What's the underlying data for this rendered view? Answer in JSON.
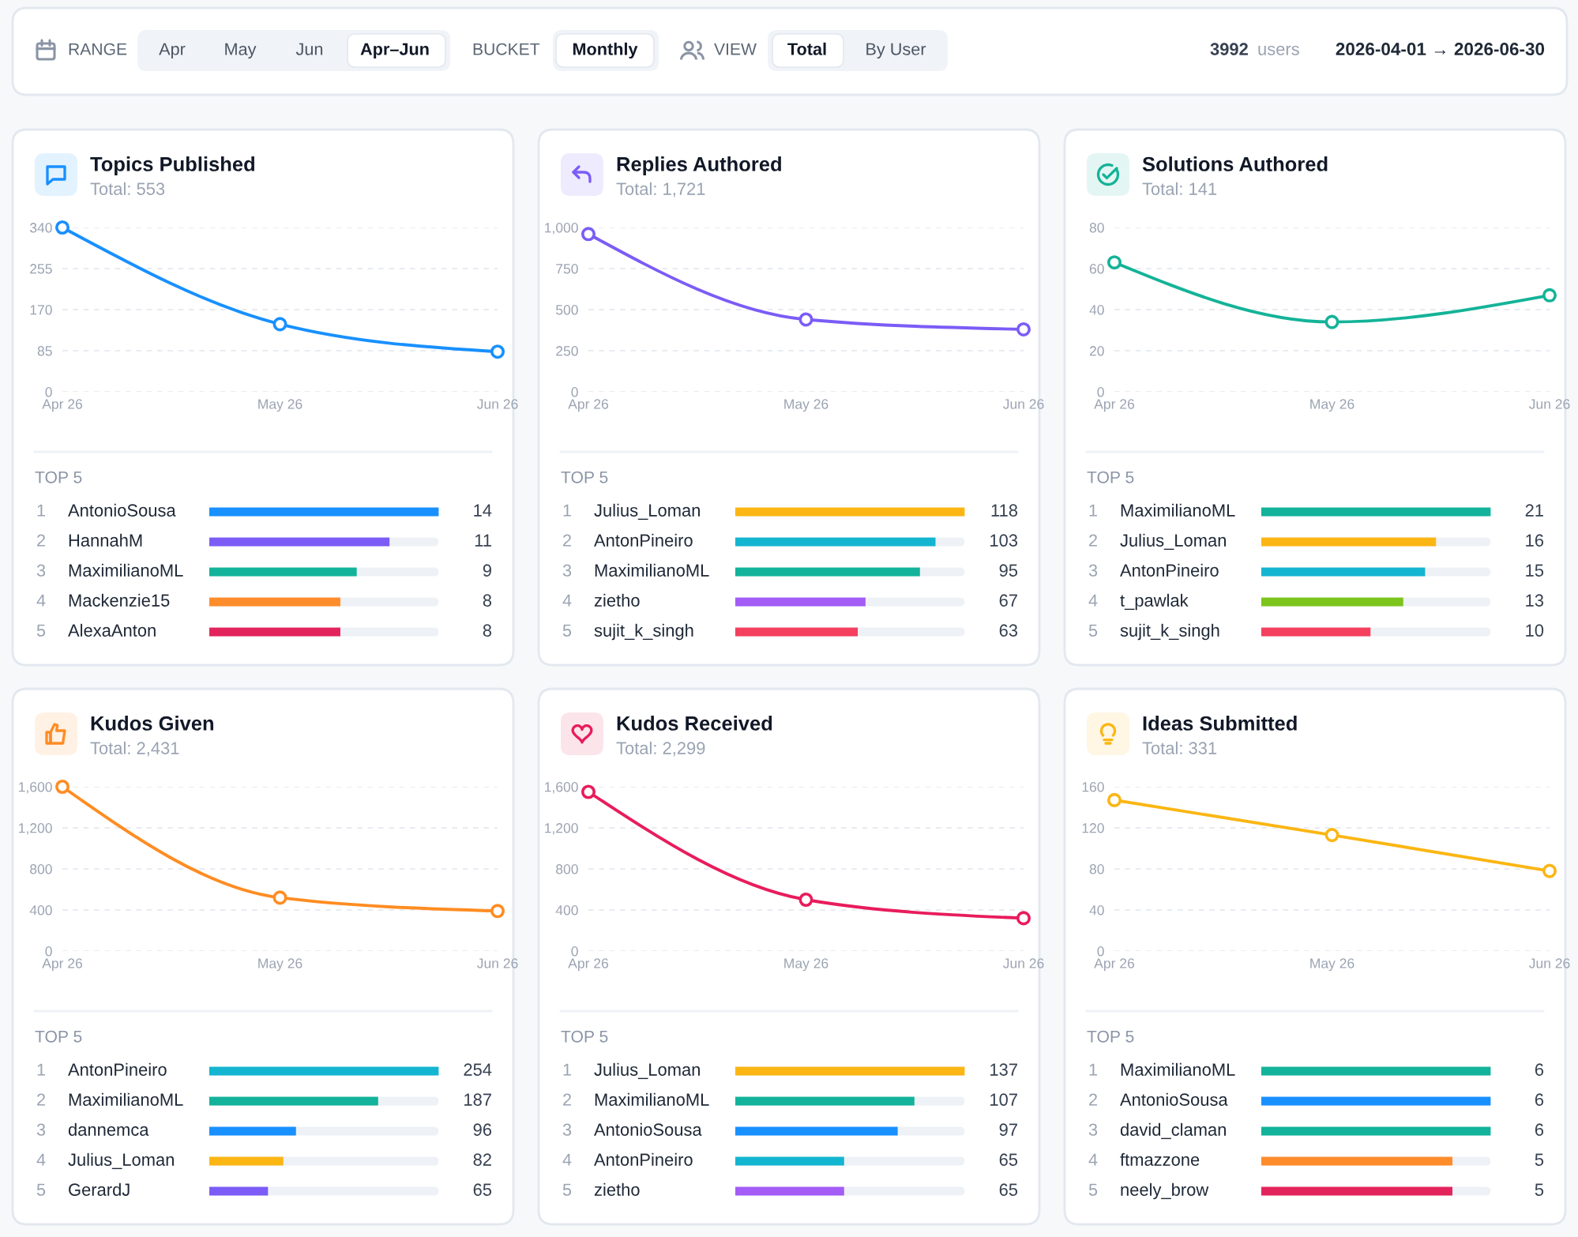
{
  "chart_data": [
    {
      "type": "other",
      "annotations": [
        "RANGE",
        "Apr",
        "May",
        "Jun",
        "Apr–Jun",
        "BUCKET",
        "Monthly",
        "VIEW",
        "Total",
        "By User",
        "3992",
        "users",
        "2026-04-01 → 2026-06-30"
      ]
    },
    {
      "type": "line",
      "title": "Topics Published",
      "subtitle": "Total: 553",
      "categories": [
        "Apr 26",
        "May 26",
        "Jun 26"
      ],
      "series": [
        {
          "color": "#1890ff",
          "values": [
            340,
            140,
            83
          ]
        }
      ],
      "ylim": [
        0,
        340
      ],
      "yticks": [
        0,
        85,
        170,
        255,
        340
      ],
      "grid": "y",
      "marker": "circle",
      "line_style": "solid"
    },
    {
      "type": "bar",
      "orientation": "horizontal",
      "title": "TOP 5",
      "categories": [
        "AntonioSousa",
        "HannahM",
        "MaximilianoML",
        "Mackenzie15",
        "AlexaAnton"
      ],
      "y2_categories": [
        "1",
        "2",
        "3",
        "4",
        "5"
      ],
      "values": [
        14,
        11,
        9,
        8,
        8
      ],
      "colors": [
        "#1890ff",
        "#7c5cf6",
        "#12b39a",
        "#ff8c2b",
        "#e3245c"
      ],
      "data_labels": true,
      "tick_labels": "y"
    },
    {
      "type": "line",
      "title": "Replies Authored",
      "subtitle": "Total: 1,721",
      "categories": [
        "Apr 26",
        "May 26",
        "Jun 26"
      ],
      "series": [
        {
          "color": "#7b5cf6",
          "values": [
            960,
            440,
            380
          ]
        }
      ],
      "ylim": [
        0,
        1000
      ],
      "yticks": [
        0,
        250,
        500,
        750,
        {
          "value": 1000,
          "label": "1,000"
        }
      ],
      "grid": "y",
      "marker": "circle",
      "line_style": "solid"
    },
    {
      "type": "bar",
      "orientation": "horizontal",
      "title": "TOP 5",
      "categories": [
        "Julius_Loman",
        "AntonPineiro",
        "MaximilianoML",
        "zietho",
        "sujit_k_singh"
      ],
      "y2_categories": [
        "1",
        "2",
        "3",
        "4",
        "5"
      ],
      "values": [
        118,
        103,
        95,
        67,
        63
      ],
      "colors": [
        "#fbb614",
        "#14b5d0",
        "#12b39a",
        "#a35cf6",
        "#f43f5e"
      ],
      "data_labels": true,
      "tick_labels": "y"
    },
    {
      "type": "line",
      "title": "Solutions Authored",
      "subtitle": "Total: 141",
      "categories": [
        "Apr 26",
        "May 26",
        "Jun 26"
      ],
      "series": [
        {
          "color": "#14b398",
          "values": [
            63,
            34,
            47
          ]
        }
      ],
      "ylim": [
        0,
        80
      ],
      "yticks": [
        0,
        20,
        40,
        60,
        80
      ],
      "grid": "y",
      "marker": "circle",
      "line_style": "solid"
    },
    {
      "type": "bar",
      "orientation": "horizontal",
      "title": "TOP 5",
      "categories": [
        "MaximilianoML",
        "Julius_Loman",
        "AntonPineiro",
        "t_pawlak",
        "sujit_k_singh"
      ],
      "y2_categories": [
        "1",
        "2",
        "3",
        "4",
        "5"
      ],
      "values": [
        21,
        16,
        15,
        13,
        10
      ],
      "colors": [
        "#12b39a",
        "#fbb614",
        "#14b5d0",
        "#7cc51c",
        "#f43f5e"
      ],
      "data_labels": true,
      "tick_labels": "y"
    },
    {
      "type": "line",
      "title": "Kudos Given",
      "subtitle": "Total: 2,431",
      "categories": [
        "Apr 26",
        "May 26",
        "Jun 26"
      ],
      "series": [
        {
          "color": "#ff8c22",
          "values": [
            1600,
            520,
            390
          ]
        }
      ],
      "ylim": [
        0,
        1600
      ],
      "yticks": [
        0,
        400,
        800,
        {
          "value": 1200,
          "label": "1,200"
        },
        {
          "value": 1600,
          "label": "1,600"
        }
      ],
      "grid": "y",
      "marker": "circle",
      "line_style": "solid"
    },
    {
      "type": "bar",
      "orientation": "horizontal",
      "title": "TOP 5",
      "categories": [
        "AntonPineiro",
        "MaximilianoML",
        "dannemca",
        "Julius_Loman",
        "GerardJ"
      ],
      "y2_categories": [
        "1",
        "2",
        "3",
        "4",
        "5"
      ],
      "values": [
        254,
        187,
        96,
        82,
        65
      ],
      "colors": [
        "#14b5d0",
        "#12b39a",
        "#1890ff",
        "#fbb614",
        "#7c5cf6"
      ],
      "data_labels": true,
      "tick_labels": "y"
    },
    {
      "type": "line",
      "title": "Kudos Received",
      "subtitle": "Total: 2,299",
      "categories": [
        "Apr 26",
        "May 26",
        "Jun 26"
      ],
      "series": [
        {
          "color": "#e81c5c",
          "values": [
            1550,
            500,
            320
          ]
        }
      ],
      "ylim": [
        0,
        1600
      ],
      "yticks": [
        0,
        400,
        800,
        {
          "value": 1200,
          "label": "1,200"
        },
        {
          "value": 1600,
          "label": "1,600"
        }
      ],
      "grid": "y",
      "marker": "circle",
      "line_style": "solid"
    },
    {
      "type": "bar",
      "orientation": "horizontal",
      "title": "TOP 5",
      "categories": [
        "Julius_Loman",
        "MaximilianoML",
        "AntonioSousa",
        "AntonPineiro",
        "zietho"
      ],
      "y2_categories": [
        "1",
        "2",
        "3",
        "4",
        "5"
      ],
      "values": [
        137,
        107,
        97,
        65,
        65
      ],
      "colors": [
        "#fbb614",
        "#12b39a",
        "#1890ff",
        "#14b5d0",
        "#a35cf6"
      ],
      "data_labels": true,
      "tick_labels": "y"
    },
    {
      "type": "line",
      "title": "Ideas Submitted",
      "subtitle": "Total: 331",
      "categories": [
        "Apr 26",
        "May 26",
        "Jun 26"
      ],
      "series": [
        {
          "color": "#fbb614",
          "values": [
            147,
            113,
            78
          ]
        }
      ],
      "ylim": [
        0,
        160
      ],
      "yticks": [
        0,
        40,
        80,
        120,
        160
      ],
      "grid": "y",
      "marker": "circle",
      "line_style": "solid"
    },
    {
      "type": "bar",
      "orientation": "horizontal",
      "title": "TOP 5",
      "categories": [
        "MaximilianoML",
        "AntonioSousa",
        "david_claman",
        "ftmazzone",
        "neely_brow"
      ],
      "y2_categories": [
        "1",
        "2",
        "3",
        "4",
        "5"
      ],
      "values": [
        6,
        6,
        6,
        5,
        5
      ],
      "colors": [
        "#12b39a",
        "#1890ff",
        "#12b39a",
        "#ff8c2b",
        "#e3245c"
      ],
      "data_labels": true,
      "tick_labels": "y"
    }
  ]
}
